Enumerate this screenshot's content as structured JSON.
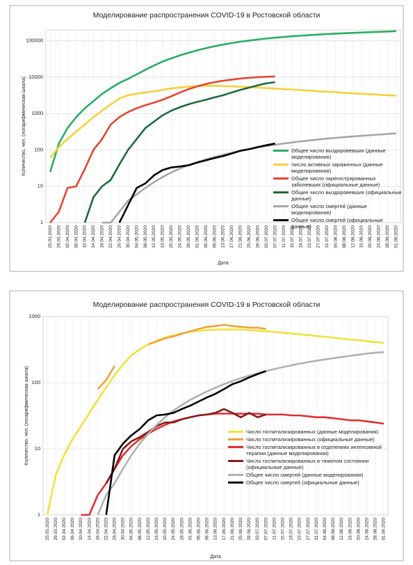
{
  "chart_data": [
    {
      "type": "line",
      "title": "Моделирование распространения COVID-19 в Ростовской области",
      "y_label": "Количество, чел. (логарифмическая шкала)",
      "x_label": "Дата",
      "log_scale": true,
      "grid": true,
      "legend": "right",
      "categories": [
        "25.03.2020",
        "29.03.2020",
        "02.04.2020",
        "06.04.2020",
        "10.04.2020",
        "14.04.2020",
        "18.04.2020",
        "22.04.2020",
        "26.04.2020",
        "30.04.2020",
        "04.05.2020",
        "08.05.2020",
        "12.05.2020",
        "16.05.2020",
        "20.05.2020",
        "24.05.2020",
        "28.05.2020",
        "01.06.2020",
        "05.06.2020",
        "09.06.2020",
        "13.06.2020",
        "17.06.2020",
        "21.06.2020",
        "25.06.2020",
        "29.06.2020",
        "03.07.2020",
        "07.07.2020",
        "11.07.2020",
        "15.07.2020",
        "19.07.2020",
        "23.07.2020",
        "27.07.2020",
        "31.07.2020",
        "04.08.2020",
        "08.08.2020",
        "12.08.2020",
        "16.08.2020",
        "20.08.2020",
        "24.08.2020",
        "28.08.2020",
        "01.09.2020"
      ],
      "ylim": [
        1,
        200000
      ],
      "yticks": [
        1,
        10,
        100,
        1000,
        10000,
        100000
      ],
      "series": [
        {
          "name": "Общее число выздоровевших (данные моделирования)",
          "color": "#27ae60",
          "values": [
            25,
            150,
            400,
            800,
            1400,
            2200,
            3500,
            5000,
            7000,
            9000,
            12000,
            16000,
            21000,
            27000,
            33000,
            40000,
            47000,
            55000,
            63000,
            71000,
            79000,
            87000,
            95000,
            102000,
            109000,
            116000,
            122000,
            128000,
            134000,
            139000,
            144000,
            149000,
            154000,
            158000,
            162000,
            166000,
            170000,
            174000,
            177000,
            181000,
            185000
          ]
        },
        {
          "name": "Число активных зараженных (данные моделирования)",
          "color": "#f5d03b",
          "values": [
            60,
            120,
            200,
            320,
            500,
            800,
            1200,
            1800,
            2600,
            3200,
            3500,
            3800,
            4100,
            4500,
            4900,
            5200,
            5500,
            5700,
            5800,
            5800,
            5700,
            5600,
            5500,
            5400,
            5200,
            5000,
            4900,
            4700,
            4600,
            4400,
            4300,
            4100,
            4000,
            3900,
            3700,
            3600,
            3500,
            3400,
            3300,
            3200,
            3100
          ]
        },
        {
          "name": "Общее число зарегистрированных заболевших (официальные данные)",
          "color": "#e8432f",
          "values": [
            1,
            2,
            9,
            10,
            30,
            100,
            200,
            500,
            800,
            1100,
            1400,
            1700,
            2000,
            2400,
            3000,
            3800,
            4700,
            5600,
            6500,
            7300,
            8000,
            8600,
            9200,
            9700,
            10000,
            10300,
            10500,
            null,
            null,
            null,
            null,
            null,
            null,
            null,
            null,
            null,
            null,
            null,
            null,
            null,
            null
          ]
        },
        {
          "name": "Общее число выздоровевших (официальные данные)",
          "color": "#1b6b3a",
          "values": [
            null,
            null,
            null,
            null,
            1,
            5,
            10,
            15,
            40,
            100,
            200,
            400,
            600,
            900,
            1200,
            1500,
            1800,
            2100,
            2400,
            2800,
            3200,
            3800,
            4500,
            5200,
            6000,
            6800,
            7300,
            null,
            null,
            null,
            null,
            null,
            null,
            null,
            null,
            null,
            null,
            null,
            null,
            null,
            null
          ]
        },
        {
          "name": "Общее число смертей (данные моделирования)",
          "color": "#a6a6a6",
          "values": [
            null,
            null,
            null,
            null,
            null,
            null,
            1,
            1,
            2,
            4,
            6,
            9,
            13,
            18,
            24,
            31,
            38,
            46,
            55,
            64,
            74,
            84,
            95,
            106,
            117,
            128,
            139,
            150,
            161,
            172,
            183,
            194,
            205,
            215,
            225,
            235,
            245,
            255,
            265,
            275,
            285
          ]
        },
        {
          "name": "Общее число смертей (официальные данные)",
          "color": "#000000",
          "values": [
            null,
            null,
            null,
            null,
            null,
            null,
            null,
            null,
            1,
            3,
            9,
            12,
            20,
            28,
            33,
            35,
            38,
            45,
            52,
            60,
            68,
            80,
            95,
            105,
            120,
            135,
            150,
            null,
            null,
            null,
            null,
            null,
            null,
            null,
            null,
            null,
            null,
            null,
            null,
            null,
            null
          ]
        }
      ]
    },
    {
      "type": "line",
      "title": "Моделирование распространения COVID-19 в Ростовской области",
      "y_label": "Количество, чел. (логарифмическая шкала)",
      "x_label": "Дата",
      "log_scale": true,
      "grid": true,
      "legend": "right",
      "categories": [
        "25.03.2020",
        "29.03.2020",
        "02.04.2020",
        "06.04.2020",
        "10.04.2020",
        "14.04.2020",
        "18.04.2020",
        "22.04.2020",
        "26.04.2020",
        "30.04.2020",
        "04.05.2020",
        "08.05.2020",
        "12.05.2020",
        "16.05.2020",
        "20.05.2020",
        "24.05.2020",
        "28.05.2020",
        "01.06.2020",
        "05.06.2020",
        "09.06.2020",
        "13.06.2020",
        "17.06.2020",
        "21.06.2020",
        "25.06.2020",
        "29.06.2020",
        "03.07.2020",
        "07.07.2020",
        "11.07.2020",
        "15.07.2020",
        "19.07.2020",
        "23.07.2020",
        "27.07.2020",
        "31.07.2020",
        "04.08.2020",
        "08.08.2020",
        "12.08.2020",
        "16.08.2020",
        "20.08.2020",
        "24.08.2020",
        "28.08.2020",
        "01.09.2020"
      ],
      "ylim": [
        1,
        1000
      ],
      "yticks": [
        1,
        10,
        100,
        1000
      ],
      "series": [
        {
          "name": "Число госпитализированных (данные моделирования)",
          "color": "#f0e23a",
          "values": [
            1,
            4,
            8,
            14,
            22,
            35,
            55,
            85,
            130,
            190,
            260,
            320,
            380,
            430,
            480,
            520,
            560,
            590,
            610,
            625,
            635,
            640,
            640,
            635,
            625,
            615,
            600,
            585,
            570,
            555,
            540,
            525,
            510,
            495,
            480,
            465,
            450,
            440,
            425,
            410,
            400
          ]
        },
        {
          "name": "Число госпитализированных (официальные данные)",
          "color": "#f0a33a",
          "values": [
            null,
            null,
            null,
            null,
            null,
            null,
            80,
            110,
            180,
            null,
            null,
            null,
            380,
            420,
            470,
            500,
            550,
            600,
            650,
            700,
            720,
            750,
            720,
            700,
            680,
            680,
            650,
            null,
            null,
            null,
            null,
            null,
            null,
            null,
            null,
            null,
            null,
            null,
            null,
            null,
            null
          ]
        },
        {
          "name": "Число госпитализированных в отделениях интенсивной терапии (данные моделирования)",
          "color": "#e03030",
          "values": [
            null,
            null,
            null,
            null,
            1,
            1,
            2,
            3,
            5,
            8,
            11,
            14,
            17,
            20,
            23,
            26,
            28,
            30,
            32,
            33,
            34,
            34,
            34,
            34,
            34,
            34,
            33,
            33,
            33,
            32,
            32,
            31,
            30,
            30,
            29,
            28,
            27,
            27,
            26,
            25,
            24
          ]
        },
        {
          "name": "Число госпитализированных в тяжелом состоянии (официальные данные)",
          "color": "#8b1a1a",
          "values": [
            null,
            null,
            null,
            null,
            null,
            null,
            null,
            3,
            5,
            10,
            13,
            15,
            18,
            22,
            25,
            25,
            28,
            30,
            32,
            33,
            35,
            40,
            35,
            30,
            35,
            30,
            33,
            null,
            null,
            null,
            null,
            null,
            null,
            null,
            null,
            null,
            null,
            null,
            null,
            null,
            null
          ]
        },
        {
          "name": "Общее число смертей (данные моделирования)",
          "color": "#b0b0b0",
          "values": [
            null,
            null,
            null,
            null,
            null,
            null,
            1,
            2,
            3,
            5,
            8,
            12,
            17,
            23,
            30,
            38,
            46,
            55,
            64,
            74,
            84,
            95,
            106,
            117,
            128,
            139,
            150,
            161,
            172,
            183,
            194,
            205,
            215,
            225,
            235,
            245,
            255,
            265,
            275,
            285,
            290
          ]
        },
        {
          "name": "Общее число смертей (официальные данные)",
          "color": "#000000",
          "values": [
            null,
            null,
            null,
            null,
            null,
            null,
            null,
            1,
            8,
            12,
            16,
            20,
            27,
            32,
            33,
            35,
            40,
            45,
            52,
            60,
            68,
            80,
            95,
            105,
            120,
            135,
            150,
            null,
            null,
            null,
            null,
            null,
            null,
            null,
            null,
            null,
            null,
            null,
            null,
            null,
            null
          ]
        }
      ]
    }
  ]
}
